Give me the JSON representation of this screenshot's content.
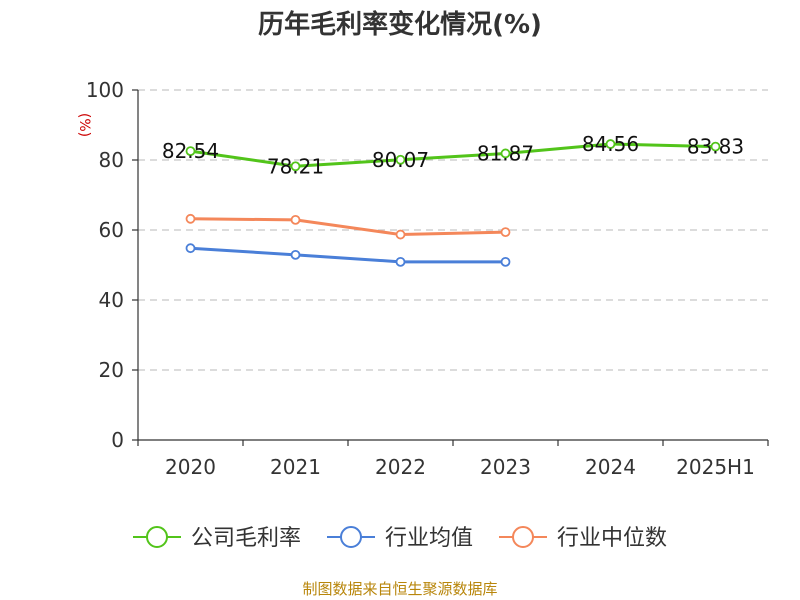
{
  "chart_data": {
    "type": "line",
    "title": "历年毛利率变化情况(%)",
    "unit_label": "(%)",
    "categories": [
      "2020",
      "2021",
      "2022",
      "2023",
      "2024",
      "2025H1"
    ],
    "ylim": [
      0,
      100
    ],
    "yticks": [
      0,
      20,
      40,
      60,
      80,
      100
    ],
    "grid": true,
    "legend_position": "bottom",
    "series": [
      {
        "name": "公司毛利率",
        "color": "#52c41a",
        "values": [
          82.54,
          78.21,
          80.07,
          81.87,
          84.56,
          83.83
        ],
        "show_labels": true
      },
      {
        "name": "行业均值",
        "color": "#4a7fd8",
        "values": [
          54.8,
          52.9,
          50.9,
          50.9,
          null,
          null
        ],
        "show_labels": false
      },
      {
        "name": "行业中位数",
        "color": "#f4875a",
        "values": [
          63.2,
          62.9,
          58.7,
          59.4,
          null,
          null
        ],
        "show_labels": false
      }
    ],
    "source": "制图数据来自恒生聚源数据库"
  }
}
